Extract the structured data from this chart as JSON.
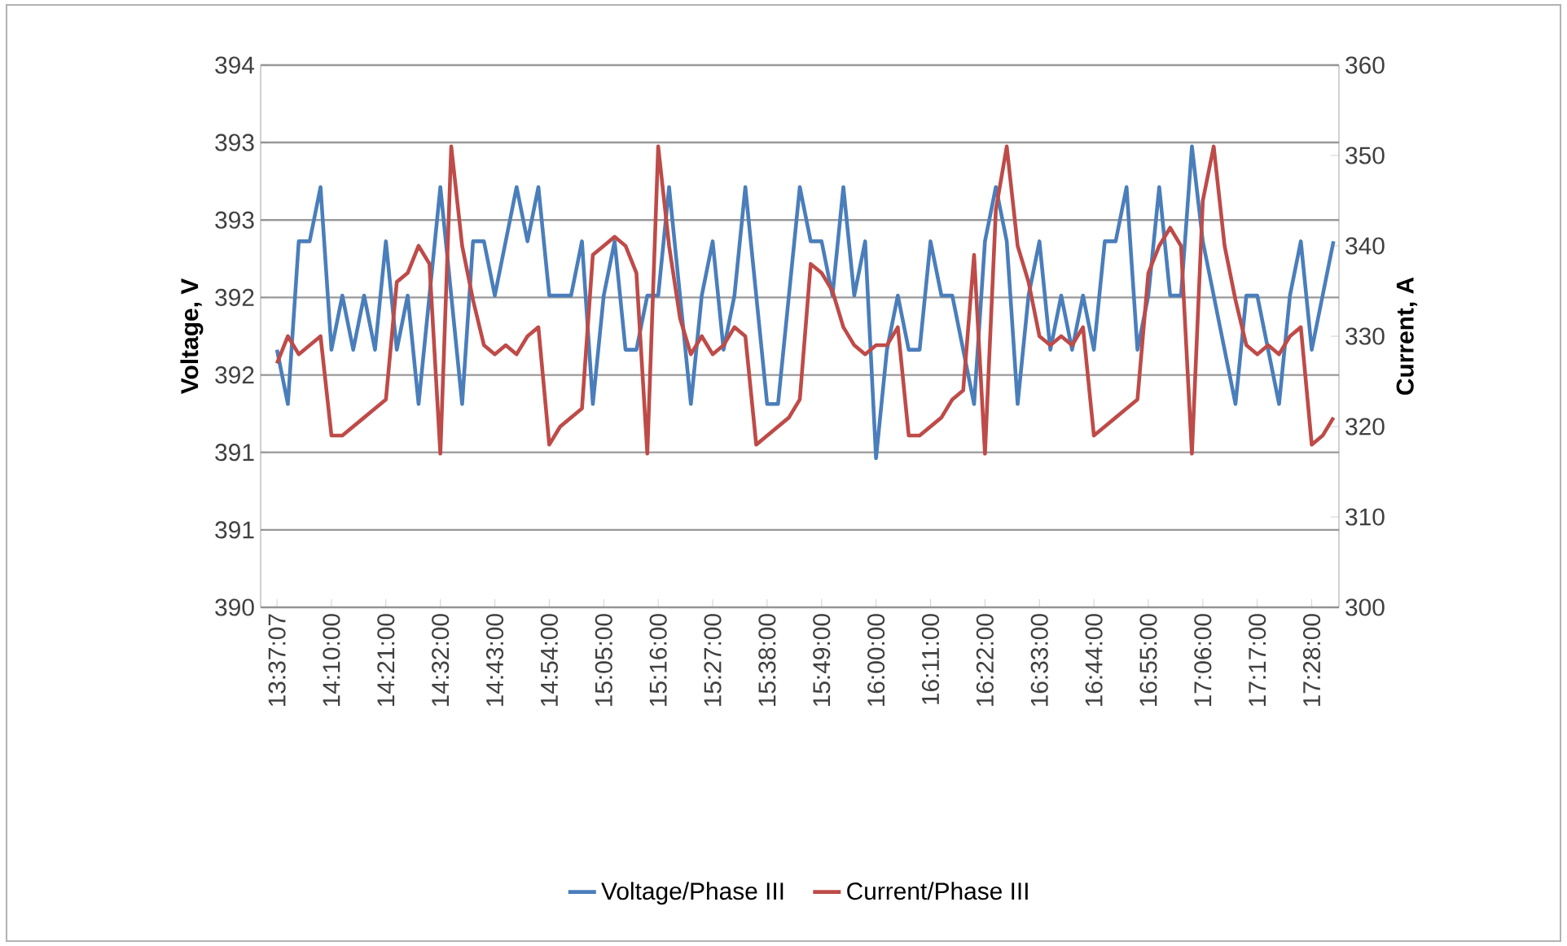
{
  "chart_data": {
    "type": "line",
    "categories": [
      "13:37:07",
      null,
      null,
      null,
      null,
      "14:10:00",
      null,
      null,
      null,
      null,
      "14:21:00",
      null,
      null,
      null,
      null,
      "14:32:00",
      null,
      null,
      null,
      null,
      "14:43:00",
      null,
      null,
      null,
      null,
      "14:54:00",
      null,
      null,
      null,
      null,
      "15:05:00",
      null,
      null,
      null,
      null,
      "15:16:00",
      null,
      null,
      null,
      null,
      "15:27:00",
      null,
      null,
      null,
      null,
      "15:38:00",
      null,
      null,
      null,
      null,
      "15:49:00",
      null,
      null,
      null,
      null,
      "16:00:00",
      null,
      null,
      null,
      null,
      "16:11:00",
      null,
      null,
      null,
      null,
      "16:22:00",
      null,
      null,
      null,
      null,
      "16:33:00",
      null,
      null,
      null,
      null,
      "16:44:00",
      null,
      null,
      null,
      null,
      "16:55:00",
      null,
      null,
      null,
      null,
      "17:06:00",
      null,
      null,
      null,
      null,
      "17:17:00",
      null,
      null,
      null,
      null,
      "17:28:00",
      null,
      null
    ],
    "series": [
      {
        "name": "Voltage/Phase III",
        "color": "#4a7ebb",
        "values": [
          391.9,
          391.5,
          392.7,
          392.7,
          393.1,
          391.9,
          392.3,
          391.9,
          392.3,
          391.9,
          392.7,
          391.9,
          392.3,
          391.5,
          392.3,
          393.1,
          392.3,
          391.5,
          392.7,
          392.7,
          392.3,
          392.7,
          393.1,
          392.7,
          393.1,
          392.3,
          392.3,
          392.3,
          392.7,
          391.5,
          392.3,
          392.7,
          391.9,
          391.9,
          392.3,
          392.3,
          393.1,
          392.3,
          391.5,
          392.3,
          392.7,
          391.9,
          392.3,
          393.1,
          392.3,
          391.5,
          391.5,
          392.3,
          393.1,
          392.7,
          392.7,
          392.3,
          393.1,
          392.3,
          392.7,
          391.1,
          391.9,
          392.3,
          391.9,
          391.9,
          392.7,
          392.3,
          392.3,
          391.9,
          391.5,
          392.7,
          393.1,
          392.7,
          391.5,
          392.3,
          392.7,
          391.9,
          392.3,
          391.9,
          392.3,
          391.9,
          392.7,
          392.7,
          393.1,
          391.9,
          392.3,
          393.1,
          392.3,
          392.3,
          393.4,
          392.7,
          392.3,
          391.9,
          391.5,
          392.3,
          392.3,
          391.9,
          391.5,
          392.3,
          392.7,
          391.9,
          392.3,
          392.7
        ]
      },
      {
        "name": "Current/Phase III",
        "color": "#be4b48",
        "axis": "y2",
        "values": [
          327,
          330,
          328,
          329,
          330,
          319,
          319,
          320,
          321,
          322,
          323,
          336,
          337,
          340,
          338,
          317,
          351,
          340,
          334,
          329,
          328,
          329,
          328,
          330,
          331,
          318,
          320,
          321,
          322,
          339,
          340,
          341,
          340,
          337,
          317,
          351,
          340,
          332,
          328,
          330,
          328,
          329,
          331,
          330,
          318,
          319,
          320,
          321,
          323,
          338,
          337,
          335,
          331,
          329,
          328,
          329,
          329,
          331,
          319,
          319,
          320,
          321,
          323,
          324,
          339,
          317,
          344,
          351,
          340,
          336,
          330,
          329,
          330,
          329,
          331,
          319,
          320,
          321,
          322,
          323,
          337,
          340,
          342,
          340,
          317,
          345,
          351,
          340,
          334,
          329,
          328,
          329,
          328,
          330,
          331,
          318,
          319,
          321
        ]
      }
    ],
    "ylabel": "Voltage, V",
    "y2label": "Current, A",
    "ylim": [
      390,
      394
    ],
    "yticks": [
      {
        "value": 390,
        "label": "390"
      },
      {
        "value": 390.571,
        "label": "391"
      },
      {
        "value": 391.143,
        "label": "391"
      },
      {
        "value": 391.714,
        "label": "392"
      },
      {
        "value": 392.286,
        "label": "392"
      },
      {
        "value": 392.857,
        "label": "393"
      },
      {
        "value": 393.429,
        "label": "393"
      },
      {
        "value": 394,
        "label": "394"
      }
    ],
    "y2lim": [
      300,
      360
    ],
    "y2ticks": [
      300,
      310,
      320,
      330,
      340,
      350,
      360
    ],
    "grid": "y",
    "legend": "bottom"
  }
}
